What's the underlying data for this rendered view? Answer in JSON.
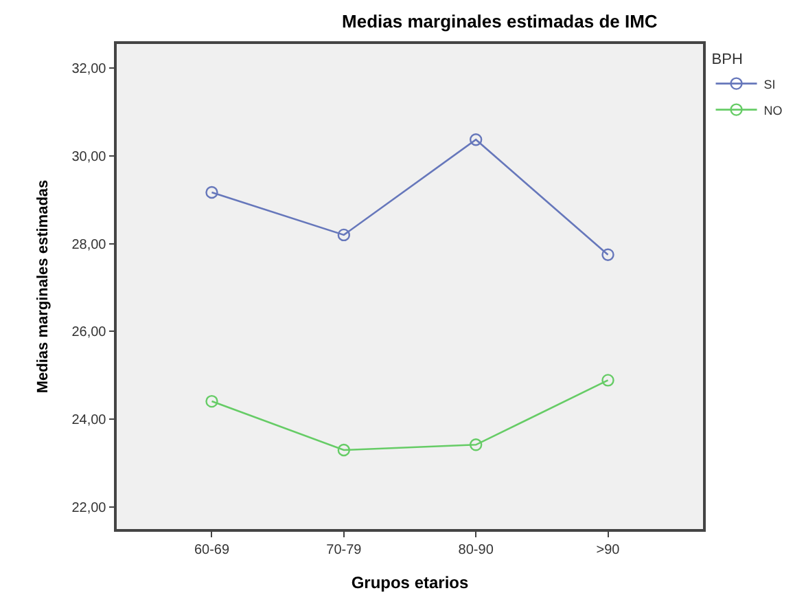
{
  "chart_data": {
    "type": "line",
    "title": "Medias marginales estimadas de IMC",
    "xlabel": "Grupos etarios",
    "ylabel": "Medias marginales estimadas",
    "legend_title": "BPH",
    "categories": [
      "60-69",
      "70-79",
      "80-90",
      ">90"
    ],
    "series": [
      {
        "name": "SI",
        "color": "#6677bb",
        "values": [
          29.17,
          28.2,
          30.37,
          27.75
        ]
      },
      {
        "name": "NO",
        "color": "#66cc66",
        "values": [
          24.41,
          23.3,
          23.42,
          24.89
        ]
      }
    ],
    "ylim": [
      21.5,
      32.55
    ],
    "yticks": [
      {
        "value": 22,
        "label": "22,00"
      },
      {
        "value": 24,
        "label": "24,00"
      },
      {
        "value": 26,
        "label": "26,00"
      },
      {
        "value": 28,
        "label": "28,00"
      },
      {
        "value": 30,
        "label": "30,00"
      },
      {
        "value": 32,
        "label": "32,00"
      }
    ],
    "grid": false,
    "legend": "top right",
    "marker": "circle",
    "line_style": "solid"
  }
}
